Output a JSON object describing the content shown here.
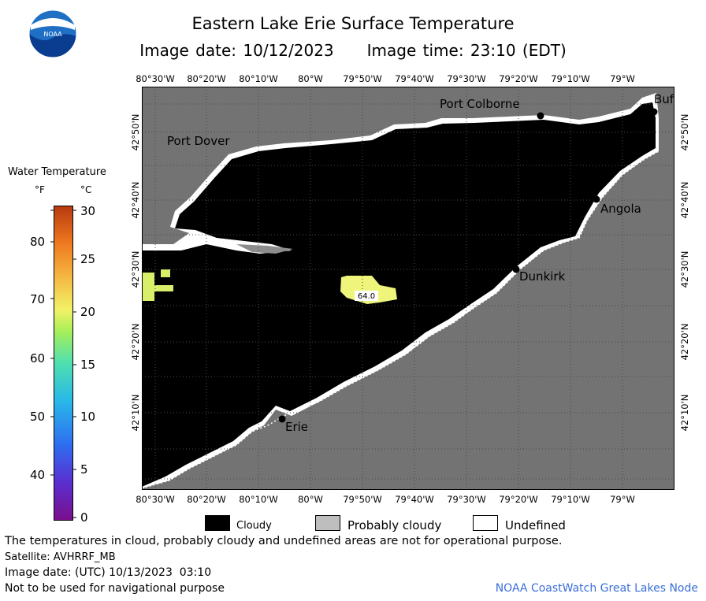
{
  "header": {
    "title": "Eastern Lake Erie Surface Temperature",
    "image_date": "Image date: 10/12/2023",
    "image_time": "Image time: 23:10 (EDT)"
  },
  "logo": {
    "text": "NOAA",
    "icon": "noaa-logo-icon"
  },
  "axes": {
    "top": [
      "80°30'W",
      "80°20'W",
      "80°10'W",
      "80°W",
      "79°50'W",
      "79°40'W",
      "79°30'W",
      "79°20'W",
      "79°10'W",
      "79°W"
    ],
    "bottom": [
      "80°30'W",
      "80°20'W",
      "80°10'W",
      "80°W",
      "79°50'W",
      "79°40'W",
      "79°30'W",
      "79°20'W",
      "79°10'W",
      "79°W"
    ],
    "left": [
      "42°50'N",
      "42°40'N",
      "42°30'N",
      "42°20'N",
      "42°10'N"
    ],
    "right": [
      "42°50'N",
      "42°40'N",
      "42°30'N",
      "42°20'N",
      "42°10'N"
    ]
  },
  "places": {
    "port_colborne": "Port Colborne",
    "buffalo": "Buf",
    "port_dover": "Port Dover",
    "angola": "Angola",
    "dunkirk": "Dunkirk",
    "erie": "Erie"
  },
  "readings": {
    "patch_temp": "64.0"
  },
  "legend": {
    "title": "Water Temperature",
    "unit_f": "°F",
    "unit_c": "°C",
    "f_ticks": [
      "80",
      "70",
      "60",
      "50",
      "40"
    ],
    "c_ticks": [
      "30",
      "25",
      "20",
      "15",
      "10",
      "5",
      "0"
    ]
  },
  "key": {
    "cloudy": "Cloudy",
    "probably_cloudy": "Probably cloudy",
    "undefined": "Undefined",
    "colors": {
      "cloudy": "#000000",
      "probably_cloudy": "#bebebe",
      "undefined": "#ffffff"
    }
  },
  "footer": {
    "disclaimer": "The temperatures in cloud, probably cloudy and undefined areas are not for operational purpose.",
    "satellite": "Satellite: AVHRRF_MB",
    "utc_date": "Image date: (UTC) 10/13/2023  03:10",
    "nav_warning": "Not to be used for navigational purpose",
    "credit": "NOAA CoastWatch Great Lakes Node"
  },
  "colors": {
    "land": "#737373",
    "patch": "#eef57a",
    "credit": "#3a6fd8"
  }
}
